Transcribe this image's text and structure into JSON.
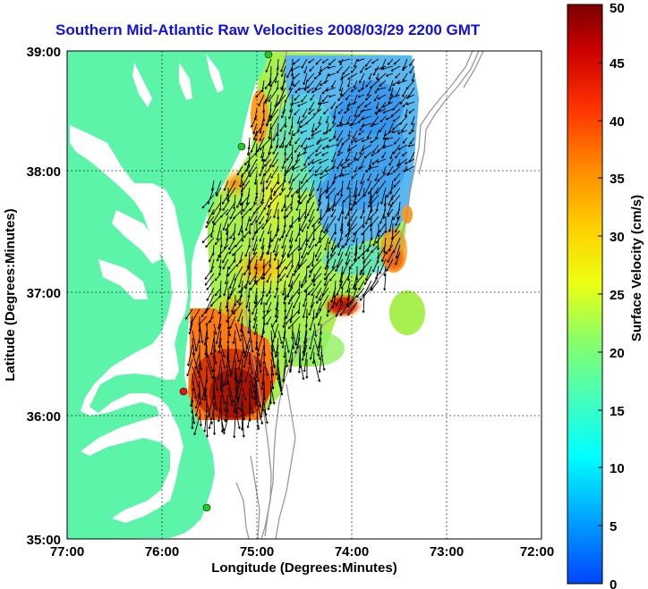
{
  "title": "Southern Mid-Atlantic Raw Velocities 2008/03/29 2200 GMT",
  "xlabel": "Longitude (Degrees:Minutes)",
  "ylabel": "Latitude (Degrees:Minutes)",
  "colorbar_label": "Surface Velocity (cm/s)",
  "x_ticks": [
    "77:00",
    "76:00",
    "75:00",
    "74:00",
    "73:00",
    "72:00"
  ],
  "y_ticks": [
    "39:00",
    "38:00",
    "37:00",
    "36:00",
    "35:00"
  ],
  "colorbar_ticks": [
    "0",
    "5",
    "10",
    "15",
    "20",
    "25",
    "30",
    "35",
    "40",
    "45",
    "50"
  ],
  "colors": {
    "land": "#5cf4a8",
    "title": "#1010e0",
    "coast_station": "#22cc22",
    "red_station": "#ee1111"
  }
}
